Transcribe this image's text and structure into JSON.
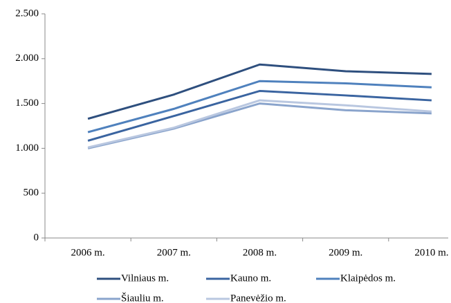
{
  "chart_data": {
    "type": "line",
    "categories": [
      "2006 m.",
      "2007 m.",
      "2008 m.",
      "2009 m.",
      "2010 m."
    ],
    "series": [
      {
        "name": "Vilniaus m.",
        "color": "#2e4f7e",
        "values": [
          1330,
          1600,
          1935,
          1860,
          1830
        ]
      },
      {
        "name": "Kauno m.",
        "color": "#3a64a0",
        "values": [
          1085,
          1360,
          1640,
          1590,
          1535
        ]
      },
      {
        "name": "Klaipėdos m.",
        "color": "#4f81bd",
        "values": [
          1180,
          1440,
          1750,
          1725,
          1680
        ]
      },
      {
        "name": "Šiauliu m.",
        "color": "#8aa4cc",
        "values": [
          1000,
          1220,
          1500,
          1425,
          1390
        ]
      },
      {
        "name": "Panevėžio m.",
        "color": "#b9c7e0",
        "values": [
          1010,
          1230,
          1535,
          1480,
          1410
        ]
      }
    ],
    "ylim": [
      0,
      2500
    ],
    "yticks": [
      0,
      500,
      {
        "value": 1000,
        "label": "1.000"
      },
      {
        "value": 1500,
        "label": "1.500"
      },
      {
        "value": 2000,
        "label": "2.000"
      },
      {
        "value": 2500,
        "label": "2.500"
      }
    ],
    "grid": false,
    "legend": "bottom"
  }
}
